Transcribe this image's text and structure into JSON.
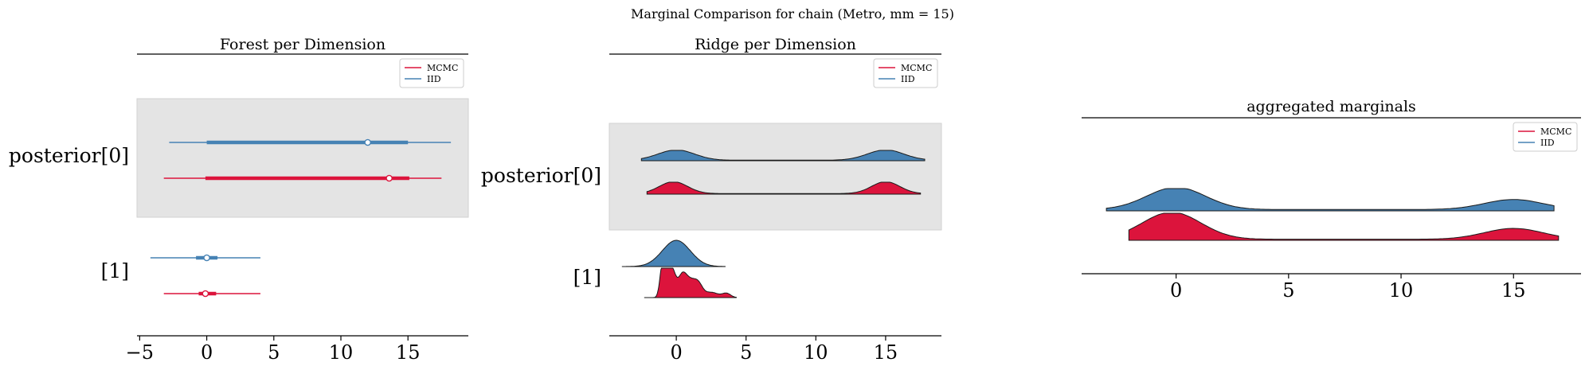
{
  "suptitle": "Marginal Comparison for chain (Metro, mm = 15)",
  "colors": {
    "mcmc": "#dc143c",
    "iid": "#4682b4",
    "band": "#e4e4e4"
  },
  "chart_data": [
    {
      "type": "forest",
      "title": "Forest per Dimension",
      "legend": {
        "placement": "top-right",
        "entries": [
          "MCMC",
          "IID"
        ]
      },
      "ytick_labels": [
        "posterior[0]",
        "[1]"
      ],
      "xticks": [
        "−5",
        "0",
        "5",
        "10",
        "15"
      ],
      "xlim": [
        -5.2,
        19.5
      ],
      "rows": [
        {
          "label": "posterior[0]",
          "iid": {
            "low": -2.8,
            "q_low": 0.0,
            "median": 12.0,
            "q_high": 15.0,
            "high": 18.2
          },
          "mcmc": {
            "low": -3.2,
            "q_low": -0.1,
            "median": 13.6,
            "q_high": 15.1,
            "high": 17.5
          }
        },
        {
          "label": "[1]",
          "iid": {
            "low": -4.2,
            "q_low": -0.8,
            "median": 0.0,
            "q_high": 0.8,
            "high": 4.0
          },
          "mcmc": {
            "low": -3.2,
            "q_low": -0.6,
            "median": -0.1,
            "q_high": 0.7,
            "high": 4.0
          }
        }
      ]
    },
    {
      "type": "ridgeline",
      "title": "Ridge per Dimension",
      "legend": {
        "placement": "top-right",
        "entries": [
          "MCMC",
          "IID"
        ]
      },
      "ytick_labels": [
        "posterior[0]",
        "[1]"
      ],
      "xticks": [
        "0",
        "5",
        "10",
        "15"
      ],
      "xlim": [
        -4.8,
        19.0
      ],
      "rows": [
        {
          "label": "posterior[0]",
          "iid": {
            "range": [
              -2.5,
              17.8
            ],
            "peaks": [
              [
                0.0,
                1.3,
                1.0
              ],
              [
                15.0,
                1.3,
                1.0
              ]
            ],
            "floor": 0.05
          },
          "mcmc": {
            "range": [
              -2.1,
              17.5
            ],
            "peaks": [
              [
                -0.2,
                1.0,
                1.0
              ],
              [
                15.0,
                1.0,
                1.0
              ]
            ],
            "floor": 0.05
          }
        },
        {
          "label": "[1]",
          "iid": {
            "range": [
              -3.9,
              3.5
            ],
            "peaks": [
              [
                0.0,
                1.0,
                1.0
              ]
            ],
            "floor": 0.0
          },
          "mcmc": {
            "range": [
              -2.3,
              4.3
            ],
            "peaks": [
              [
                -1.0,
                0.18,
                1.0
              ],
              [
                -0.7,
                0.2,
                0.75
              ],
              [
                -0.3,
                0.25,
                0.9
              ],
              [
                0.4,
                0.3,
                0.65
              ],
              [
                1.0,
                0.4,
                0.55
              ],
              [
                1.6,
                0.3,
                0.35
              ],
              [
                2.5,
                0.5,
                0.18
              ],
              [
                3.6,
                0.3,
                0.14
              ]
            ],
            "floor": 0.0
          }
        }
      ]
    },
    {
      "type": "ridgeline",
      "title": "aggregated marginals",
      "legend": {
        "placement": "top-right",
        "entries": [
          "MCMC",
          "IID"
        ]
      },
      "ytick_labels": [],
      "xticks": [
        "0",
        "5",
        "10",
        "15"
      ],
      "xlim": [
        -4.2,
        18.0
      ],
      "rows": [
        {
          "label": "",
          "iid": {
            "range": [
              -3.1,
              16.8
            ],
            "peaks": [
              [
                0.0,
                1.3,
                1.0
              ],
              [
                15.0,
                1.3,
                0.45
              ]
            ],
            "floor": 0.06
          },
          "mcmc": {
            "range": [
              -2.1,
              17.0
            ],
            "peaks": [
              [
                -0.2,
                1.3,
                1.0
              ],
              [
                15.0,
                1.3,
                0.4
              ]
            ],
            "floor": 0.04
          }
        }
      ]
    }
  ]
}
